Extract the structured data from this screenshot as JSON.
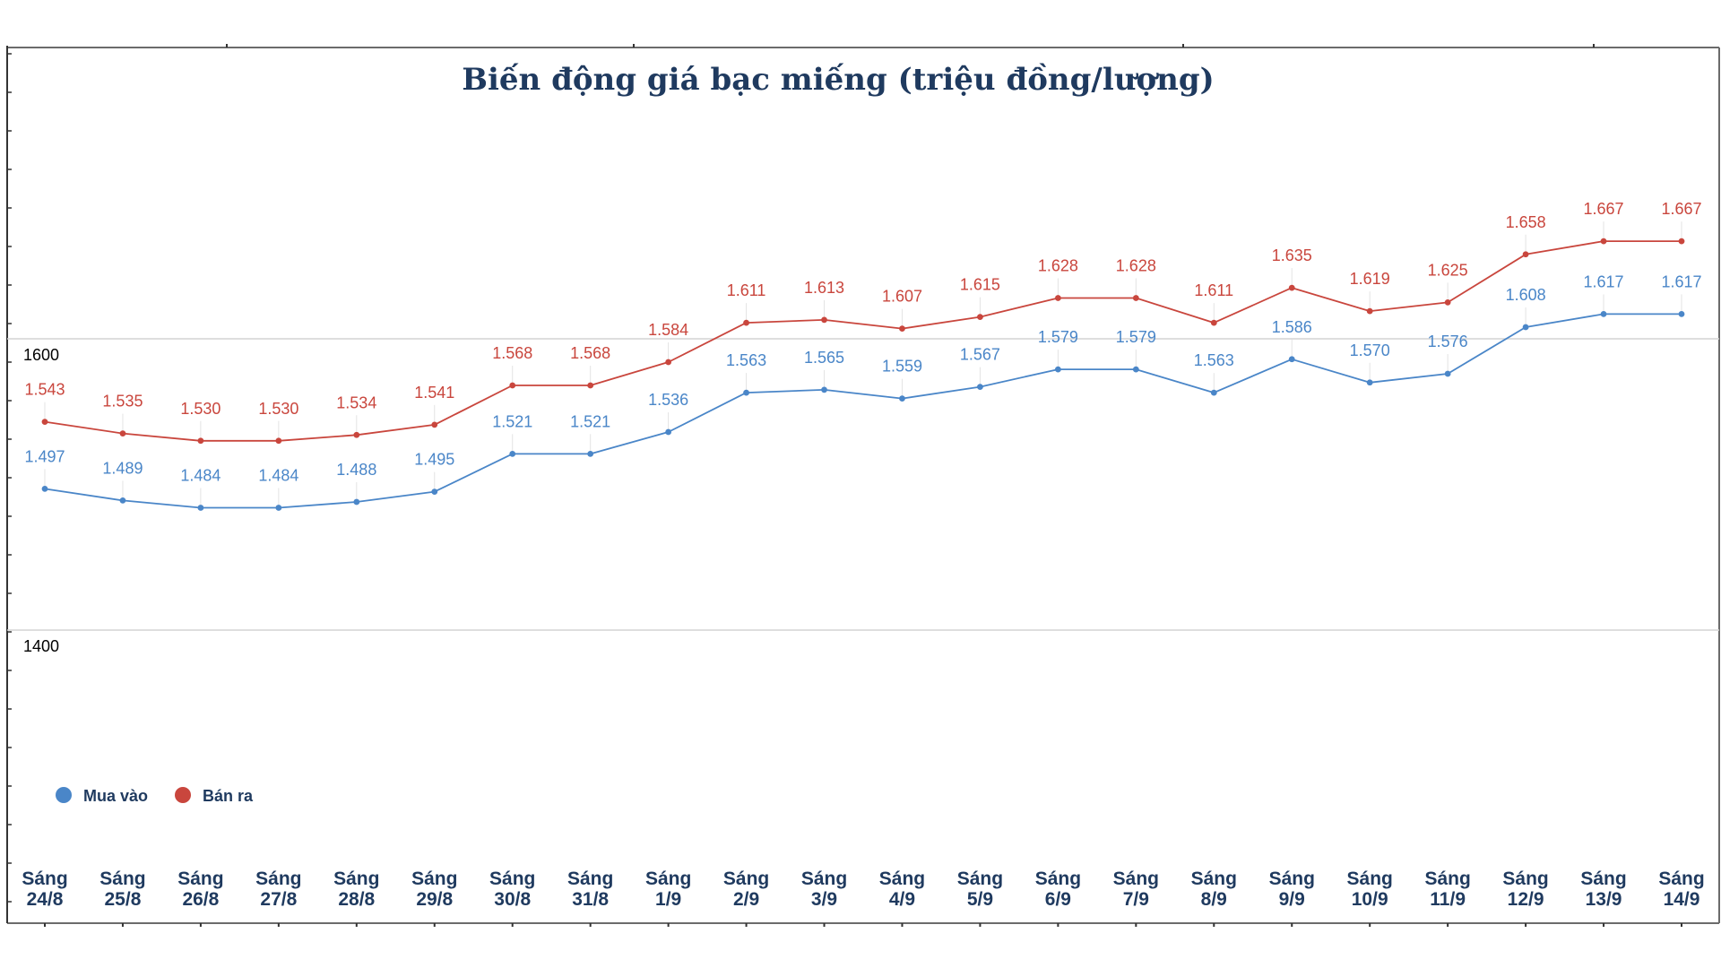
{
  "chart_data": {
    "type": "line",
    "title": "Biến động giá bạc miếng (triệu đồng/lượng)",
    "xlabel": "",
    "ylabel": "",
    "ylim": [
      1200,
      1800
    ],
    "yticks": [
      {
        "value": 1600,
        "label": "1600"
      },
      {
        "value": 1400,
        "label": "1400"
      }
    ],
    "grid": true,
    "legend_position": "bottom-left",
    "categories": [
      {
        "line1": "Sáng",
        "line2": "24/8"
      },
      {
        "line1": "Sáng",
        "line2": "25/8"
      },
      {
        "line1": "Sáng",
        "line2": "26/8"
      },
      {
        "line1": "Sáng",
        "line2": "27/8"
      },
      {
        "line1": "Sáng",
        "line2": "28/8"
      },
      {
        "line1": "Sáng",
        "line2": "29/8"
      },
      {
        "line1": "Sáng",
        "line2": "30/8"
      },
      {
        "line1": "Sáng",
        "line2": "31/8"
      },
      {
        "line1": "Sáng",
        "line2": "1/9"
      },
      {
        "line1": "Sáng",
        "line2": "2/9"
      },
      {
        "line1": "Sáng",
        "line2": "3/9"
      },
      {
        "line1": "Sáng",
        "line2": "4/9"
      },
      {
        "line1": "Sáng",
        "line2": "5/9"
      },
      {
        "line1": "Sáng",
        "line2": "6/9"
      },
      {
        "line1": "Sáng",
        "line2": "7/9"
      },
      {
        "line1": "Sáng",
        "line2": "8/9"
      },
      {
        "line1": "Sáng",
        "line2": "9/9"
      },
      {
        "line1": "Sáng",
        "line2": "10/9"
      },
      {
        "line1": "Sáng",
        "line2": "11/9"
      },
      {
        "line1": "Sáng",
        "line2": "12/9"
      },
      {
        "line1": "Sáng",
        "line2": "13/9"
      },
      {
        "line1": "Sáng",
        "line2": "14/9"
      }
    ],
    "series": [
      {
        "name": "Mua vào",
        "color": "#4a86c8",
        "values": [
          1497,
          1489,
          1484,
          1484,
          1488,
          1495,
          1521,
          1521,
          1536,
          1563,
          1565,
          1559,
          1567,
          1579,
          1579,
          1563,
          1586,
          1570,
          1576,
          1608,
          1617,
          1617
        ],
        "labels": [
          "1.497",
          "1.489",
          "1.484",
          "1.484",
          "1.488",
          "1.495",
          "1.521",
          "1.521",
          "1.536",
          "1.563",
          "1.565",
          "1.559",
          "1.567",
          "1.579",
          "1.579",
          "1.563",
          "1.586",
          "1.570",
          "1.576",
          "1.608",
          "1.617",
          "1.617"
        ]
      },
      {
        "name": "Bán ra",
        "color": "#c9463d",
        "values": [
          1543,
          1535,
          1530,
          1530,
          1534,
          1541,
          1568,
          1568,
          1584,
          1611,
          1613,
          1607,
          1615,
          1628,
          1628,
          1611,
          1635,
          1619,
          1625,
          1658,
          1667,
          1667
        ],
        "labels": [
          "1.543",
          "1.535",
          "1.530",
          "1.530",
          "1.534",
          "1.541",
          "1.568",
          "1.568",
          "1.584",
          "1.611",
          "1.613",
          "1.607",
          "1.615",
          "1.628",
          "1.628",
          "1.611",
          "1.635",
          "1.619",
          "1.625",
          "1.658",
          "1.667",
          "1.667"
        ]
      }
    ]
  }
}
